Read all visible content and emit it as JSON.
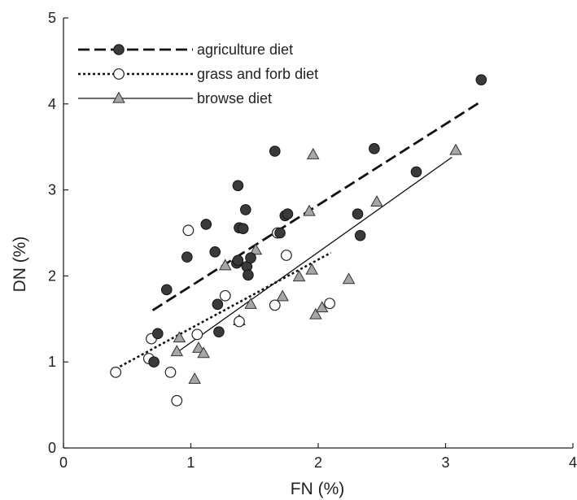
{
  "chart_data": {
    "type": "scatter",
    "title": "",
    "xlabel": "FN (%)",
    "ylabel": "DN (%)",
    "xlim": [
      0,
      4
    ],
    "ylim": [
      0,
      5
    ],
    "x_ticks": [
      "0",
      "1",
      "2",
      "3",
      "4"
    ],
    "y_ticks": [
      "0",
      "1",
      "2",
      "3",
      "4",
      "5"
    ],
    "grid": false,
    "legend_position": "top-left",
    "series": [
      {
        "name": "agriculture diet",
        "marker": "filled-circle",
        "line_style": "dashed",
        "color": "#3a3a3a",
        "points": [
          [
            0.71,
            1.0
          ],
          [
            0.74,
            1.33
          ],
          [
            0.81,
            1.84
          ],
          [
            0.97,
            2.22
          ],
          [
            1.12,
            2.6
          ],
          [
            1.19,
            2.28
          ],
          [
            1.21,
            1.67
          ],
          [
            1.22,
            1.35
          ],
          [
            1.36,
            2.15
          ],
          [
            1.37,
            3.05
          ],
          [
            1.37,
            2.18
          ],
          [
            1.38,
            2.56
          ],
          [
            1.41,
            2.55
          ],
          [
            1.43,
            2.77
          ],
          [
            1.44,
            2.11
          ],
          [
            1.45,
            2.01
          ],
          [
            1.47,
            2.21
          ],
          [
            1.66,
            3.45
          ],
          [
            1.7,
            2.5
          ],
          [
            1.74,
            2.7
          ],
          [
            1.76,
            2.72
          ],
          [
            2.31,
            2.72
          ],
          [
            2.33,
            2.47
          ],
          [
            2.44,
            3.48
          ],
          [
            2.77,
            3.21
          ],
          [
            3.28,
            4.28
          ]
        ],
        "trend": [
          [
            0.7,
            1.6
          ],
          [
            3.27,
            4.02
          ]
        ]
      },
      {
        "name": "grass and forb diet",
        "marker": "open-circle",
        "line_style": "dotted",
        "color": "#222222",
        "points": [
          [
            0.41,
            0.88
          ],
          [
            0.67,
            1.04
          ],
          [
            0.69,
            1.27
          ],
          [
            0.84,
            0.88
          ],
          [
            0.89,
            0.55
          ],
          [
            0.98,
            2.53
          ],
          [
            1.05,
            1.32
          ],
          [
            1.27,
            1.77
          ],
          [
            1.38,
            1.47
          ],
          [
            1.66,
            1.66
          ],
          [
            1.68,
            2.5
          ],
          [
            1.75,
            2.24
          ],
          [
            2.09,
            1.68
          ]
        ],
        "trend": [
          [
            0.41,
            0.92
          ],
          [
            2.1,
            2.27
          ]
        ]
      },
      {
        "name": "browse diet",
        "marker": "triangle",
        "line_style": "solid",
        "color": "#a6a6a6",
        "points": [
          [
            0.89,
            1.12
          ],
          [
            0.91,
            1.28
          ],
          [
            1.03,
            0.8
          ],
          [
            1.06,
            1.16
          ],
          [
            1.1,
            1.1
          ],
          [
            1.27,
            2.12
          ],
          [
            1.38,
            1.48
          ],
          [
            1.47,
            1.67
          ],
          [
            1.51,
            2.3
          ],
          [
            1.72,
            1.76
          ],
          [
            1.85,
            1.99
          ],
          [
            1.93,
            2.75
          ],
          [
            1.95,
            2.07
          ],
          [
            1.96,
            3.41
          ],
          [
            1.98,
            1.55
          ],
          [
            2.03,
            1.63
          ],
          [
            2.24,
            1.96
          ],
          [
            2.46,
            2.86
          ],
          [
            3.08,
            3.46
          ]
        ],
        "trend": [
          [
            0.9,
            1.12
          ],
          [
            3.05,
            3.38
          ]
        ]
      }
    ]
  }
}
